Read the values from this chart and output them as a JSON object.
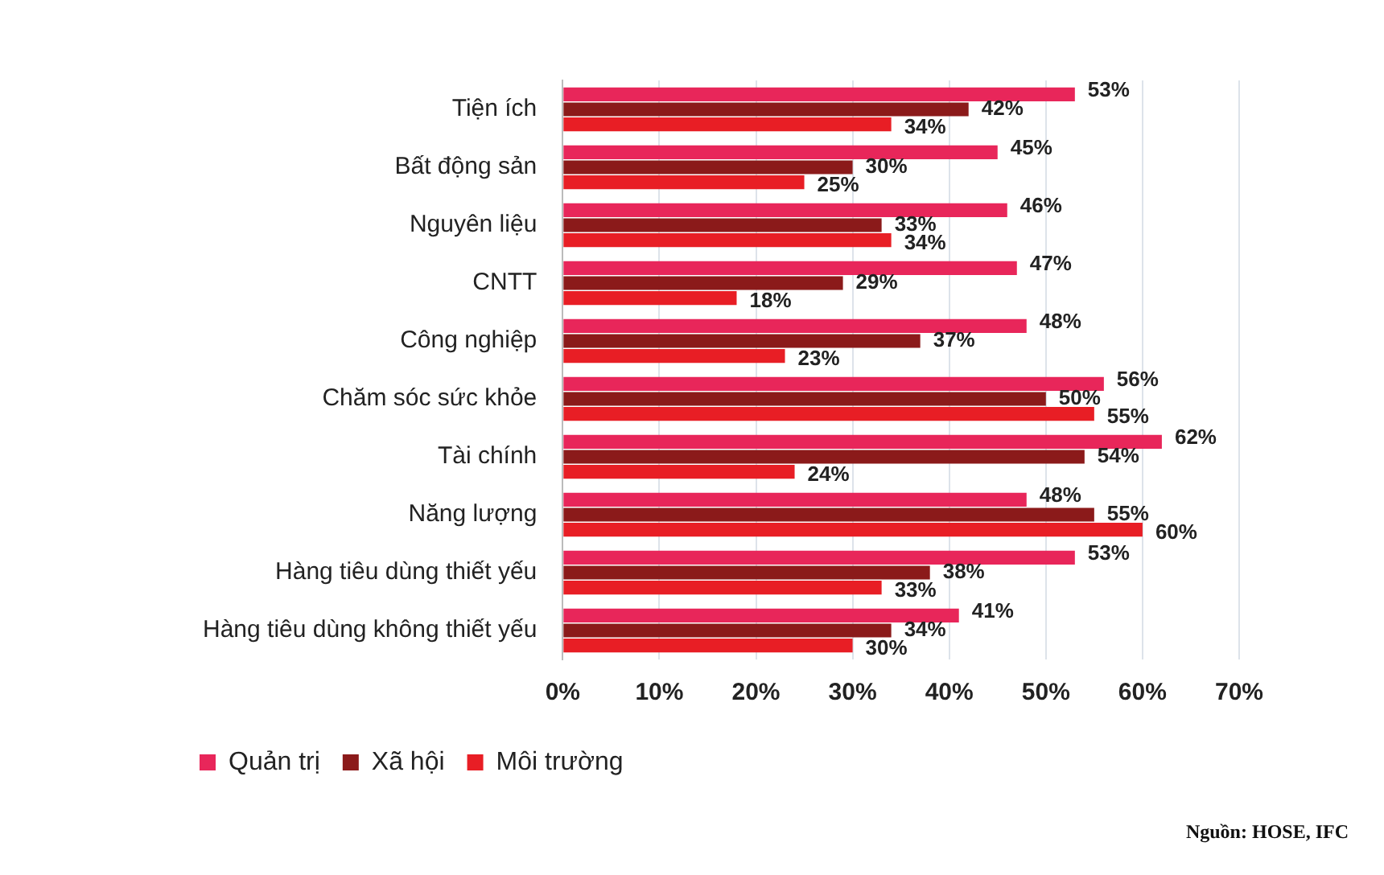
{
  "chart_data": {
    "type": "bar",
    "orientation": "horizontal",
    "categories": [
      "Tiện ích",
      "Bất động sản",
      "Nguyên liệu",
      "CNTT",
      "Công nghiệp",
      "Chăm sóc sức khỏe",
      "Tài chính",
      "Năng lượng",
      "Hàng tiêu dùng thiết yếu",
      "Hàng tiêu dùng không thiết yếu"
    ],
    "series": [
      {
        "name": "Quản trị",
        "color": "#e8265a",
        "values": [
          53,
          45,
          46,
          47,
          48,
          56,
          62,
          48,
          53,
          41
        ],
        "value_labels": [
          "53%",
          "45%",
          "46%",
          "47%",
          "48%",
          "56%",
          "62%",
          "48%",
          "53%",
          "41%"
        ]
      },
      {
        "name": "Xã hội",
        "color": "#8b1a1a",
        "values": [
          42,
          30,
          33,
          29,
          37,
          50,
          54,
          55,
          38,
          34
        ],
        "value_labels": [
          "42%",
          "30%",
          "33%",
          "29%",
          "37%",
          "50%",
          "54%",
          "55%",
          "38%",
          "34%"
        ]
      },
      {
        "name": "Môi trường",
        "color": "#e81e25",
        "values": [
          34,
          25,
          34,
          18,
          23,
          55,
          24,
          60,
          33,
          30
        ],
        "value_labels": [
          "34%",
          "25%",
          "34%",
          "18%",
          "23%",
          "55%",
          "24%",
          "60%",
          "33%",
          "30%"
        ]
      }
    ],
    "xlim": [
      0,
      70
    ],
    "xticks": [
      {
        "value": 0,
        "label": "0%"
      },
      {
        "value": 10,
        "label": "10%"
      },
      {
        "value": 20,
        "label": "20%"
      },
      {
        "value": 30,
        "label": "30%"
      },
      {
        "value": 40,
        "label": "40%"
      },
      {
        "value": 50,
        "label": "50%"
      },
      {
        "value": 60,
        "label": "60%"
      },
      {
        "value": 70,
        "label": "70%"
      }
    ],
    "grid": "x",
    "legend": "bottom left",
    "annotations": [
      "Nguồn: HOSE, IFC"
    ]
  }
}
